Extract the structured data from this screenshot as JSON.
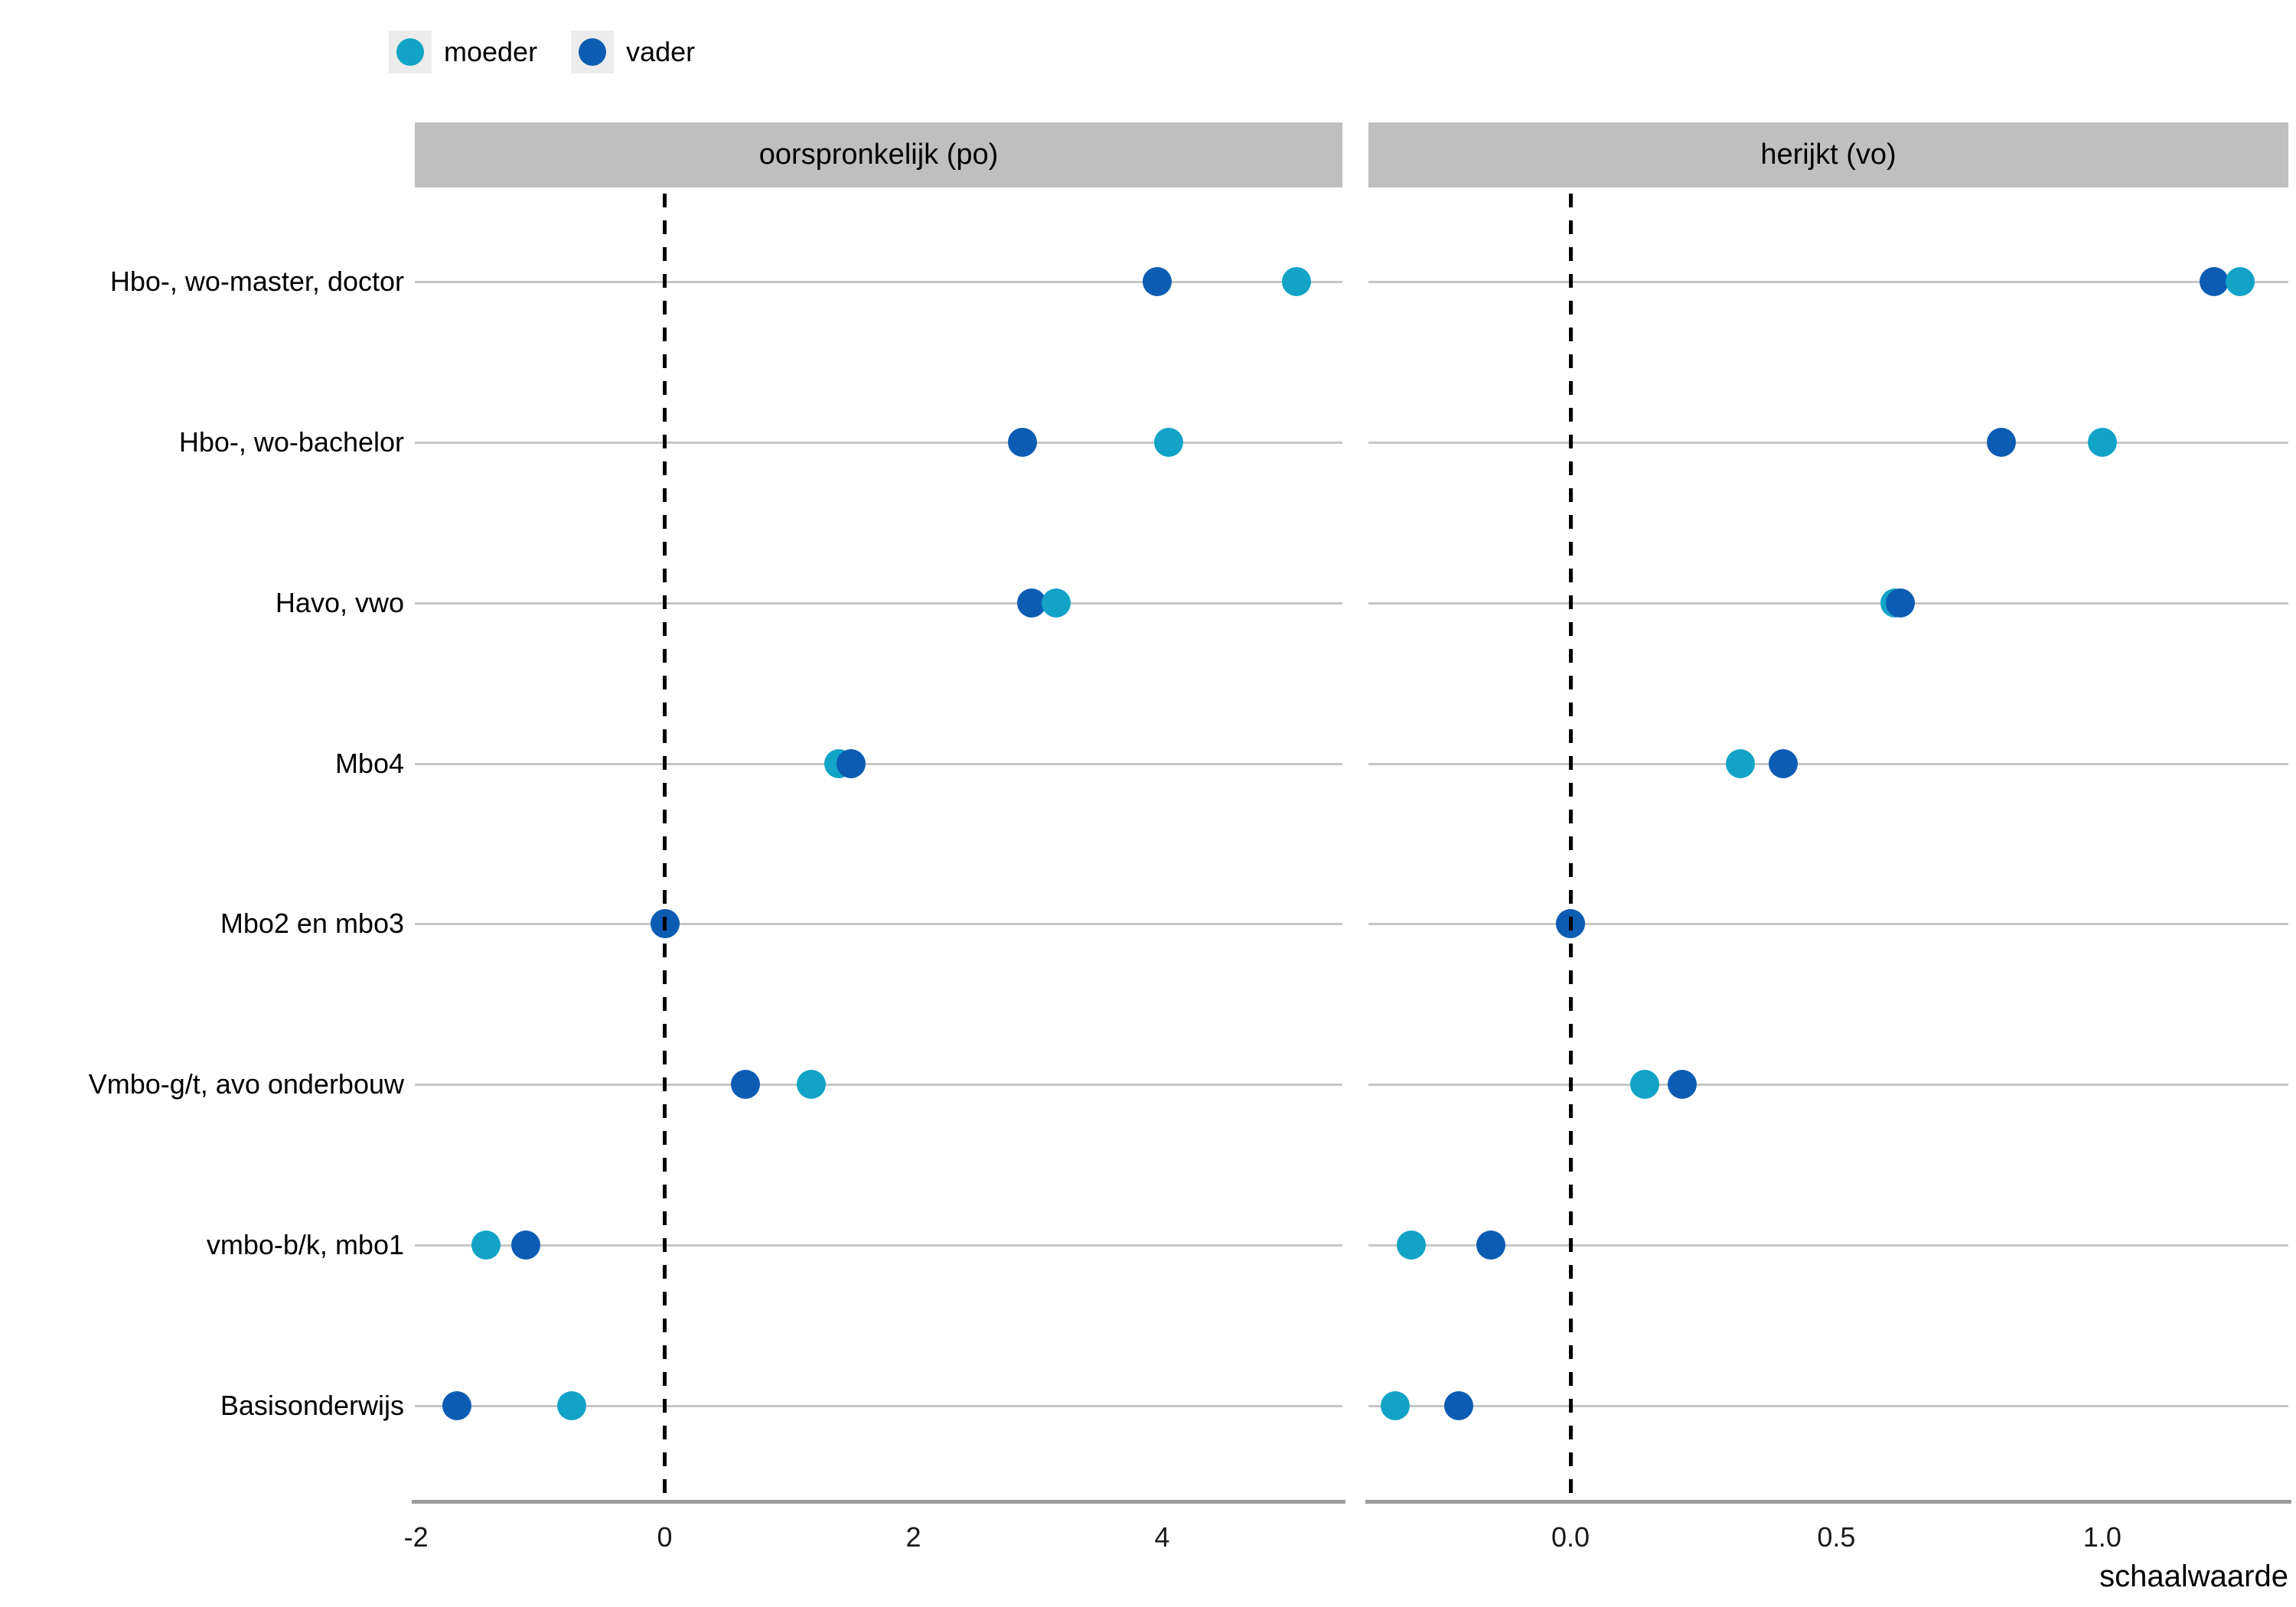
{
  "legend": {
    "items": [
      {
        "label": "moeder",
        "color": "#12a3c7"
      },
      {
        "label": "vader",
        "color": "#0c5cb3"
      }
    ]
  },
  "colors": {
    "moeder": "#12a3c7",
    "vader": "#0c5cb3",
    "strip_background": "#bfbfbf",
    "legend_key_background": "#ececec",
    "gridline": "#c6c6c6",
    "axis_line": "#9c9c9c",
    "zero_line": "#000000"
  },
  "chart_data": {
    "type": "scatter",
    "subtype": "dot-plot-faceted",
    "title": "",
    "xlabel": "schaalwaarde",
    "ylabel": "",
    "grid": "horizontal-only",
    "legend_position": "top-left",
    "zero_reference_line": "dashed-black-at-0",
    "categories": [
      "Hbo-, wo-master, doctor",
      "Hbo-, wo-bachelor",
      "Havo, vwo",
      "Mbo4",
      "Mbo2 en mbo3",
      "Vmbo-g/t, avo onderbouw",
      "vmbo-b/k, mbo1",
      "Basisonderwijs"
    ],
    "facets": [
      {
        "title": "oorspronkelijk (po)",
        "x_range": [
          -2.01,
          5.45
        ],
        "x_ticks": [
          {
            "value": -2,
            "label": "-2"
          },
          {
            "value": 0,
            "label": "0"
          },
          {
            "value": 2,
            "label": "2"
          },
          {
            "value": 4,
            "label": "4"
          }
        ],
        "series": [
          {
            "name": "moeder",
            "values": [
              5.08,
              4.05,
              3.15,
              1.4,
              0.0,
              1.18,
              -1.44,
              -0.75
            ]
          },
          {
            "name": "vader",
            "values": [
              3.96,
              2.88,
              2.95,
              1.5,
              0.0,
              0.65,
              -1.12,
              -1.67
            ]
          }
        ]
      },
      {
        "title": "herijkt (vo)",
        "x_range": [
          -0.38,
          1.35
        ],
        "x_ticks": [
          {
            "value": 0,
            "label": "0.0"
          },
          {
            "value": 0.5,
            "label": "0.5"
          },
          {
            "value": 1,
            "label": "1.0"
          }
        ],
        "series": [
          {
            "name": "moeder",
            "values": [
              1.26,
              1.0,
              0.61,
              0.32,
              0.0,
              0.14,
              -0.3,
              -0.33
            ]
          },
          {
            "name": "vader",
            "values": [
              1.21,
              0.81,
              0.62,
              0.4,
              0.0,
              0.21,
              -0.15,
              -0.21
            ]
          }
        ]
      }
    ]
  }
}
